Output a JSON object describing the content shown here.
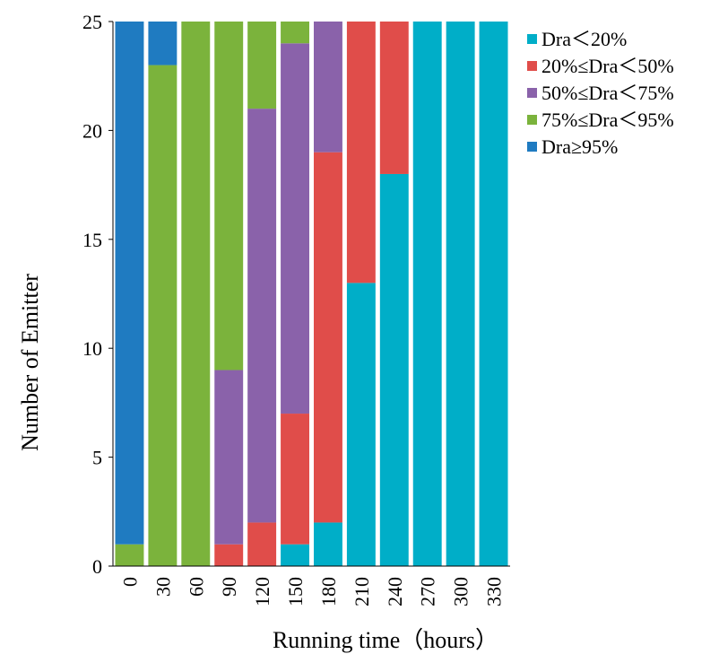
{
  "chart_data": {
    "type": "bar",
    "stacked": true,
    "title": "",
    "xlabel": "Running time（hours）",
    "ylabel": "Number of Emitter",
    "ylim": [
      0,
      25
    ],
    "yticks": [
      "0",
      "5",
      "10",
      "15",
      "20",
      "25"
    ],
    "categories": [
      "0",
      "30",
      "60",
      "90",
      "120",
      "150",
      "180",
      "210",
      "240",
      "270",
      "300",
      "330"
    ],
    "grid": false,
    "legend_position": "right",
    "series": [
      {
        "name": "Dra＜20%",
        "color": "#00AEC8",
        "values": [
          0,
          0,
          0,
          0,
          0,
          1,
          2,
          13,
          18,
          25,
          25,
          25
        ]
      },
      {
        "name": "20%≤Dra＜50%",
        "color": "#E04D4A",
        "values": [
          0,
          0,
          0,
          1,
          2,
          6,
          17,
          12,
          7,
          0,
          0,
          0
        ]
      },
      {
        "name": "50%≤Dra＜75%",
        "color": "#8A62AA",
        "values": [
          0,
          0,
          0,
          8,
          19,
          17,
          6,
          0,
          0,
          0,
          0,
          0
        ]
      },
      {
        "name": "75%≤Dra＜95%",
        "color": "#7BB33C",
        "values": [
          1,
          23,
          25,
          16,
          4,
          1,
          0,
          0,
          0,
          0,
          0,
          0
        ]
      },
      {
        "name": "Dra≥95%",
        "color": "#1F7BC1",
        "values": [
          24,
          2,
          0,
          0,
          0,
          0,
          0,
          0,
          0,
          0,
          0,
          0
        ]
      }
    ]
  }
}
